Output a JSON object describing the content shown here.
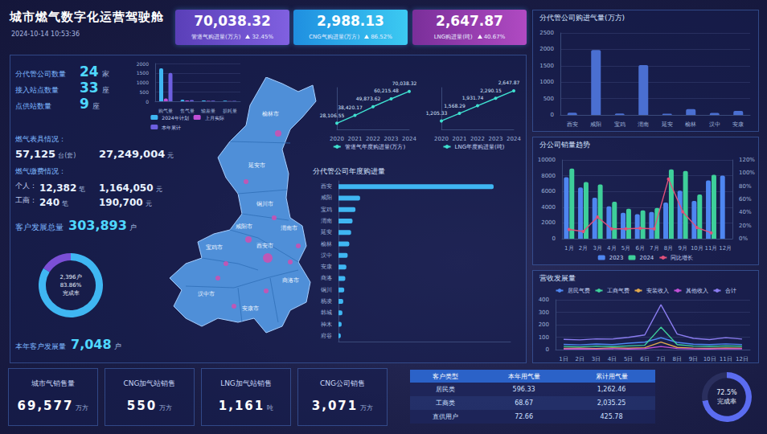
{
  "header": {
    "title": "城市燃气数字化运营驾驶舱",
    "time": "2024-10-14 10:53:36"
  },
  "kpis": [
    {
      "value": "70,038.32",
      "label": "管道气购进量(万方)",
      "change": "32.45%"
    },
    {
      "value": "2,988.13",
      "label": "CNG气购进量(万方)",
      "change": "86.52%"
    },
    {
      "value": "2,647.87",
      "label": "LNG购进量(吨)",
      "change": "40.67%"
    }
  ],
  "overview": {
    "stats": [
      {
        "label": "分代管公司数量",
        "value": "24",
        "unit": "家"
      },
      {
        "label": "接入站点数量",
        "value": "33",
        "unit": "座"
      },
      {
        "label": "点供站数量",
        "value": "9",
        "unit": "座"
      }
    ],
    "meters": {
      "title": "燃气表具情况：",
      "count": "57,125",
      "count_unit": "台(套)",
      "amount": "27,249,004",
      "amount_unit": "元"
    },
    "payments": {
      "title": "燃气缴费情况：",
      "rows": [
        {
          "label": "个人：",
          "count": "12,382",
          "count_unit": "笔",
          "amount": "1,164,050",
          "amount_unit": "元"
        },
        {
          "label": "工商：",
          "count": "240",
          "count_unit": "笔",
          "amount": "190,700",
          "amount_unit": "元"
        }
      ]
    },
    "customers_total": {
      "label": "客户发展总量",
      "value": "303,893",
      "unit": "户"
    },
    "customers_year": {
      "label": "本年客户发展量",
      "value": "7,048",
      "unit": "户"
    }
  },
  "map": {
    "cities": [
      "榆林市",
      "延安市",
      "铜川市",
      "渭南市",
      "咸阳市",
      "西安市",
      "宝鸡市",
      "汉中市",
      "安康市",
      "商洛市"
    ]
  },
  "bottom_cards": [
    {
      "label": "城市气销售量",
      "value": "69,577",
      "unit": "万方"
    },
    {
      "label": "CNG加气站销售",
      "value": "550",
      "unit": "万方"
    },
    {
      "label": "LNG加气站销售",
      "value": "1,161",
      "unit": "吨"
    },
    {
      "label": "CNG公司销售",
      "value": "3,071",
      "unit": "万方"
    }
  ],
  "table": {
    "columns": [
      "客户类型",
      "本年用气量",
      "累计用气量"
    ],
    "rows": [
      [
        "居民类",
        "596.33",
        "1,262.46"
      ],
      [
        "工商类",
        "68.67",
        "2,035.25"
      ],
      [
        "直供用户",
        "72.66",
        "425.78"
      ]
    ]
  },
  "chart_data": [
    {
      "type": "bar",
      "categories": [
        "购气量",
        "售气量",
        "输差量",
        "损耗量"
      ],
      "series": [
        {
          "name": "2024年计划",
          "color": "#3fb6f2",
          "values": [
            1750,
            80,
            40,
            30
          ]
        },
        {
          "name": "上月实际",
          "color": "#c04fd6",
          "values": [
            150,
            40,
            20,
            10
          ]
        },
        {
          "name": "本年累计",
          "color": "#6d5fe0",
          "values": [
            1500,
            60,
            30,
            20
          ]
        }
      ],
      "ylim": [
        0,
        2000
      ],
      "yticks": [
        0,
        500,
        1000,
        1500,
        2000
      ],
      "grid": true,
      "legend": "bottom"
    },
    {
      "type": "line",
      "categories": [
        "2020",
        "2021",
        "2022",
        "2023",
        "2024"
      ],
      "series": [
        {
          "name": "管道气年度购进量(万方)",
          "color": "#3fe0d0",
          "values": [
            28106.55,
            38420.17,
            49873.62,
            60215.48,
            70038.32
          ],
          "value_labels": [
            "28,106.55",
            "38,420.17",
            "49,873.62",
            "60,215.48",
            "70,038.32"
          ]
        }
      ],
      "ylim": [
        20000,
        75000
      ],
      "tick_labels": "x",
      "data_labels": true,
      "legend": "bottom",
      "marker": "circle"
    },
    {
      "type": "line",
      "categories": [
        "2020",
        "2021",
        "2022",
        "2023",
        "2024"
      ],
      "series": [
        {
          "name": "LNG年度购进量(吨)",
          "color": "#3fe0d0",
          "values": [
            1205.33,
            1568.29,
            1931.74,
            2290.15,
            2647.87
          ],
          "value_labels": [
            "1,205.33",
            "1,568.29",
            "1,931.74",
            "2,290.15",
            "2,647.87"
          ]
        }
      ],
      "ylim": [
        800,
        2800
      ],
      "tick_labels": "x",
      "data_labels": true,
      "legend": "bottom",
      "marker": "circle"
    },
    {
      "type": "bar",
      "title": "分代管公司年度购进量",
      "orientation": "horizontal",
      "categories": [
        "西安",
        "咸阳",
        "宝鸡",
        "渭南",
        "延安",
        "榆林",
        "汉中",
        "安康",
        "商洛",
        "铜川",
        "杨凌",
        "韩城",
        "神木",
        "府谷"
      ],
      "values": [
        58600,
        8150,
        6420,
        5310,
        4760,
        4080,
        3470,
        2960,
        2580,
        2170,
        1790,
        1460,
        1180,
        870
      ],
      "color": "#3fb6f2",
      "xlim": [
        0,
        65000
      ],
      "tick_labels": "y"
    },
    {
      "type": "bar",
      "title": "分代管公司购进气量(万方)",
      "categories": [
        "西安",
        "咸阳",
        "宝鸡",
        "渭南",
        "延安",
        "榆林",
        "汉中",
        "安康"
      ],
      "values": [
        65,
        1980,
        45,
        1520,
        35,
        180,
        60,
        120
      ],
      "color": "#4a6fd1",
      "ylim": [
        0,
        2500
      ],
      "yticks": [
        0,
        500,
        1000,
        1500,
        2000,
        2500
      ],
      "grid": true
    },
    {
      "type": "bar",
      "title": "分公司销量趋势",
      "categories": [
        "1月",
        "2月",
        "3月",
        "4月",
        "5月",
        "6月",
        "7月",
        "8月",
        "9月",
        "10月",
        "11月",
        "12月"
      ],
      "series": [
        {
          "name": "2023",
          "color": "#4e86f0",
          "values": [
            7800,
            6500,
            5200,
            4100,
            3300,
            3100,
            3400,
            4600,
            6100,
            4800,
            7400,
            8000
          ]
        },
        {
          "name": "2024",
          "color": "#3ecf9a",
          "values": [
            8900,
            7200,
            6900,
            4700,
            3800,
            3600,
            3900,
            8800,
            8600,
            5600,
            8100,
            null
          ]
        },
        {
          "name": "同比增长",
          "type": "line",
          "axis": "y2",
          "color": "#e0507a",
          "marker": "circle",
          "values": [
            14,
            11,
            33,
            15,
            15,
            16,
            15,
            91,
            41,
            17,
            9,
            null
          ]
        }
      ],
      "ylim": [
        0,
        10000
      ],
      "yticks": [
        0,
        2000,
        4000,
        6000,
        8000,
        10000
      ],
      "y2lim": [
        0,
        120
      ],
      "y2ticks": [
        {
          "value": 0,
          "label": "0%"
        },
        {
          "value": 20,
          "label": "20%"
        },
        {
          "value": 40,
          "label": "40%"
        },
        {
          "value": 60,
          "label": "60%"
        },
        {
          "value": 80,
          "label": "80%"
        },
        {
          "value": 100,
          "label": "100%"
        },
        {
          "value": 120,
          "label": "120%"
        }
      ],
      "grid": true,
      "legend": "bottom"
    },
    {
      "type": "line",
      "title": "营收发展量",
      "categories": [
        "1日",
        "2日",
        "3日",
        "4日",
        "5日",
        "6日",
        "7日",
        "8日",
        "9日",
        "10日",
        "11日",
        "12日"
      ],
      "series": [
        {
          "name": "居民气费",
          "color": "#4e86f0",
          "values": [
            42,
            38,
            45,
            40,
            52,
            60,
            95,
            58,
            44,
            40,
            46,
            41
          ]
        },
        {
          "name": "工商气费",
          "color": "#3ecf9a",
          "values": [
            25,
            22,
            28,
            24,
            30,
            35,
            180,
            40,
            28,
            26,
            30,
            27
          ]
        },
        {
          "name": "安装收入",
          "color": "#e0a84e",
          "values": [
            10,
            12,
            9,
            14,
            11,
            15,
            60,
            18,
            12,
            10,
            13,
            11
          ]
        },
        {
          "name": "其他收入",
          "color": "#c04fd6",
          "values": [
            5,
            6,
            4,
            7,
            5,
            8,
            25,
            9,
            6,
            5,
            7,
            6
          ]
        },
        {
          "name": "合计",
          "color": "#8a7cf0",
          "values": [
            82,
            78,
            86,
            85,
            98,
            118,
            360,
            125,
            90,
            81,
            96,
            85
          ]
        }
      ],
      "ylim": [
        0,
        400
      ],
      "yticks": [
        0,
        100,
        200,
        300,
        400
      ],
      "grid": true,
      "legend": "top"
    },
    {
      "type": "pie",
      "values": [
        83.86,
        16.14
      ],
      "colors": [
        "#3fb6f2",
        "#7b4fd6"
      ],
      "center_text": [
        "2,396户",
        "83.86%",
        "完成率"
      ]
    },
    {
      "type": "pie",
      "values": [
        72.5,
        27.5
      ],
      "colors": [
        "#5b6cf0",
        "#2a2f5e"
      ],
      "center_text": [
        "72.5%",
        "完成率"
      ]
    }
  ]
}
